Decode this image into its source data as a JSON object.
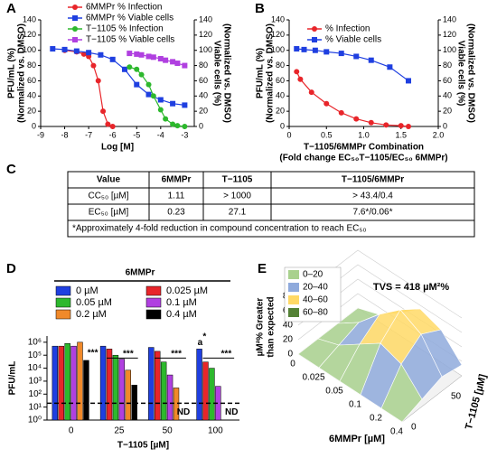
{
  "chart_data": [
    {
      "panel": "A",
      "type": "scatter",
      "xlabel": "Log [M]",
      "ylabel": [
        "PFU/mL (%)",
        "(Normalized vs. DMSO)"
      ],
      "y2label": [
        "Viable cells (%)",
        "(Normalized vs. DMSO)"
      ],
      "xlim": [
        -9,
        -2.6
      ],
      "xticks": [
        -9,
        -8,
        -7,
        -6,
        -5,
        -4,
        -3
      ],
      "ylim": [
        0,
        140
      ],
      "yticks": [
        0,
        20,
        40,
        60,
        80,
        100,
        120,
        140
      ],
      "y2lim": [
        0,
        140
      ],
      "y2ticks": [
        0,
        20,
        40,
        60,
        80,
        100,
        120,
        140
      ],
      "legend": "top-center",
      "series": [
        {
          "name": "6MMPr % Infection",
          "color": "#e8252a",
          "marker": "circle",
          "x": [
            -8,
            -7.5,
            -7.2,
            -7,
            -6.8,
            -6.6,
            -6.4,
            -6.2,
            -6
          ],
          "values": [
            100,
            98,
            95,
            92,
            80,
            60,
            20,
            3,
            0
          ]
        },
        {
          "name": "6MMPr % Viable cells",
          "color": "#1f3fe0",
          "marker": "square",
          "axis": "y2",
          "x": [
            -8.5,
            -8,
            -7.5,
            -7,
            -6.5,
            -6,
            -5.5,
            -5,
            -4.5,
            -4,
            -3.5,
            -3
          ],
          "values": [
            102,
            101,
            99,
            97,
            94,
            88,
            75,
            55,
            42,
            35,
            30,
            28
          ]
        },
        {
          "name": "T−1105  % Infection",
          "color": "#2db82d",
          "marker": "circle",
          "x": [
            -5.3,
            -5,
            -4.8,
            -4.5,
            -4.3,
            -4,
            -3.8,
            -3.5,
            -3.3,
            -3
          ],
          "values": [
            78,
            75,
            68,
            55,
            40,
            22,
            10,
            3,
            1,
            0
          ]
        },
        {
          "name": "T−1105 % Viable cells",
          "color": "#b040e0",
          "marker": "square",
          "axis": "y2",
          "x": [
            -5.3,
            -5,
            -4.8,
            -4.5,
            -4.3,
            -4,
            -3.8,
            -3.5,
            -3.3,
            -3
          ],
          "values": [
            96,
            95,
            94,
            92,
            91,
            89,
            87,
            85,
            83,
            80
          ]
        }
      ]
    },
    {
      "panel": "B",
      "type": "scatter",
      "xlabel": [
        "T−1105/6MMPr Combination",
        "(Fold change EC₅₀T−1105/EC₅₀ 6MMPr)"
      ],
      "ylabel": [
        "PFU/mL (%)",
        "(Normalized vs. DMSO)"
      ],
      "y2label": [
        "Viable cells (%)",
        "(Normalized vs. DMSO)"
      ],
      "xlim": [
        0,
        2
      ],
      "xticks": [
        0,
        0.5,
        {
          "value": 1,
          "label": "1.0"
        },
        1.5,
        {
          "value": 2,
          "label": "2.0"
        }
      ],
      "ylim": [
        0,
        140
      ],
      "yticks": [
        0,
        20,
        40,
        60,
        80,
        100,
        120,
        140
      ],
      "y2lim": [
        0,
        140
      ],
      "y2ticks": [
        0,
        20,
        40,
        60,
        80,
        100,
        120,
        140
      ],
      "legend": "top-left",
      "series": [
        {
          "name": "% Infection",
          "color": "#e8252a",
          "marker": "circle",
          "x": [
            0.1,
            0.15,
            0.3,
            0.5,
            0.7,
            0.9,
            1.1,
            1.3,
            1.5,
            1.6
          ],
          "values": [
            72,
            62,
            45,
            30,
            18,
            10,
            5,
            2,
            1,
            0
          ]
        },
        {
          "name": "% Viable cells",
          "color": "#1f3fe0",
          "marker": "square",
          "axis": "y2",
          "x": [
            0.1,
            0.2,
            0.35,
            0.5,
            0.7,
            0.9,
            1.1,
            1.35,
            1.6
          ],
          "values": [
            102,
            101,
            100,
            98,
            96,
            92,
            87,
            78,
            60
          ]
        }
      ]
    },
    {
      "panel": "D",
      "type": "bar",
      "log_scale": true,
      "legend_title": "6MMPr",
      "xlabel": "T−1105 [µM]",
      "ylabel": "PFU/mL",
      "categories": [
        0,
        25,
        50,
        100
      ],
      "ylim": [
        1,
        3000000
      ],
      "yticks": [
        {
          "value": 1,
          "label": "10⁰"
        },
        {
          "value": 10,
          "label": "10¹"
        },
        {
          "value": 100,
          "label": "10²"
        },
        {
          "value": 1000,
          "label": "10³"
        },
        {
          "value": 10000,
          "label": "10⁴"
        },
        {
          "value": 100000,
          "label": "10⁵"
        },
        {
          "value": 1000000,
          "label": "10⁶"
        }
      ],
      "limit_of_detection": 20,
      "series": [
        {
          "name": "0 µM",
          "color": "#1f3fe0",
          "values": [
            500000,
            500000,
            400000,
            300000
          ]
        },
        {
          "name": "0.025 µM",
          "color": "#e8252a",
          "values": [
            500000,
            300000,
            200000,
            30000
          ]
        },
        {
          "name": "0.05 µM",
          "color": "#2db82d",
          "values": [
            800000,
            100000,
            30000,
            10000
          ]
        },
        {
          "name": "0.1 µM",
          "color": "#b040e0",
          "values": [
            500000,
            50000,
            3000,
            400
          ]
        },
        {
          "name": "0.2 µM",
          "color": "#f0892a",
          "values": [
            1000000,
            7000,
            300,
            null
          ]
        },
        {
          "name": "0.4 µM",
          "color": "#000000",
          "values": [
            40000,
            500,
            null,
            null
          ]
        }
      ],
      "annotations": [
        "***",
        "***",
        "***",
        "***",
        "a",
        "*",
        "ND",
        "ND"
      ]
    },
    {
      "panel": "E",
      "type": "surface3d",
      "title": "TVS = 418 µM²%",
      "xlabel": "6MMPr [µM]",
      "ylabel": [
        "µM²% Greater",
        "than expected"
      ],
      "zlabel": "T−1105 [µM]",
      "x_categories": [
        0,
        0.025,
        0.05,
        0.1,
        0.2,
        0.4
      ],
      "z_categories": [
        0,
        null,
        50,
        null
      ],
      "ylim": [
        0,
        80
      ],
      "yticks": [
        0,
        20,
        40,
        60,
        80
      ],
      "bins": [
        {
          "label": "0–20",
          "color": "#a9d18e"
        },
        {
          "label": "20–40",
          "color": "#8faadc"
        },
        {
          "label": "40–60",
          "color": "#ffd966"
        },
        {
          "label": "60–80",
          "color": "#548235"
        }
      ],
      "values": [
        [
          0,
          0,
          0,
          0,
          0,
          0
        ],
        [
          0,
          10,
          30,
          50,
          40,
          10
        ],
        [
          0,
          20,
          50,
          75,
          60,
          20
        ],
        [
          0,
          10,
          30,
          55,
          45,
          15
        ]
      ]
    }
  ],
  "table": {
    "panel": "C",
    "header": [
      "Value",
      "6MMPr",
      "T−1105",
      "T−1105/6MMPr"
    ],
    "rows": [
      [
        "CC₅₀ [µM]",
        "1.11",
        "> 1000",
        "> 43.4/0.4"
      ],
      [
        "EC₅₀ [µM]",
        "0.23",
        "27.1",
        "7.6*/0.06*"
      ]
    ],
    "footnote": "*Approximately 4-fold reduction in compound concentration to reach EC₅₀"
  }
}
